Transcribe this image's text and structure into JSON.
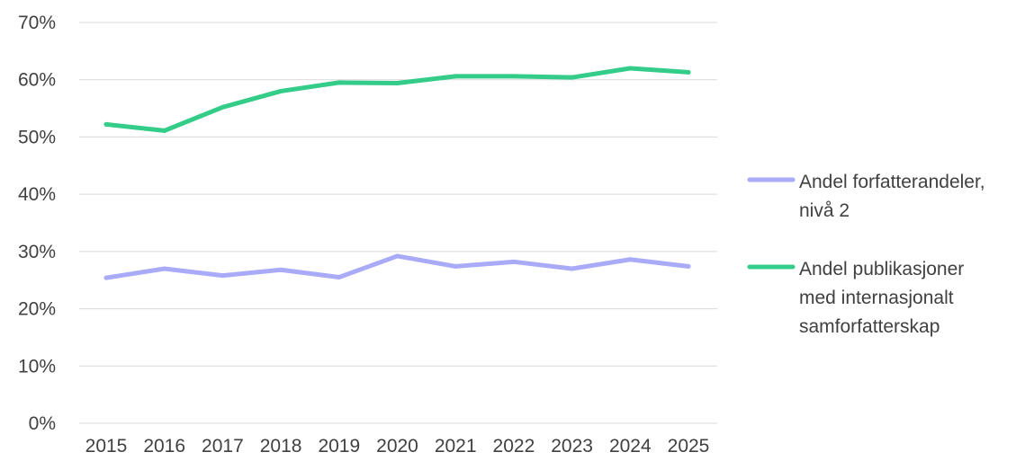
{
  "chart_data": {
    "type": "line",
    "x": [
      "2015",
      "2016",
      "2017",
      "2018",
      "2019",
      "2020",
      "2021",
      "2022",
      "2023",
      "2024",
      "2025"
    ],
    "series": [
      {
        "name_lines": [
          "Andel forfatterandeler,",
          "nivå 2"
        ],
        "color": "#a9aaf8",
        "values": [
          25.4,
          27.0,
          25.8,
          26.8,
          25.5,
          29.2,
          27.4,
          28.2,
          27.0,
          28.6,
          27.4
        ]
      },
      {
        "name_lines": [
          "Andel publikasjoner",
          "med internasjonalt",
          "samforfatterskap"
        ],
        "color": "#33cc88",
        "values": [
          52.2,
          51.1,
          55.2,
          58.0,
          59.5,
          59.4,
          60.6,
          60.6,
          60.4,
          62.0,
          61.3
        ]
      }
    ],
    "yticks": [
      "0%",
      "10%",
      "20%",
      "30%",
      "40%",
      "50%",
      "60%",
      "70%"
    ],
    "ylim": [
      0,
      70
    ],
    "grid": true,
    "legend_position": "right"
  }
}
